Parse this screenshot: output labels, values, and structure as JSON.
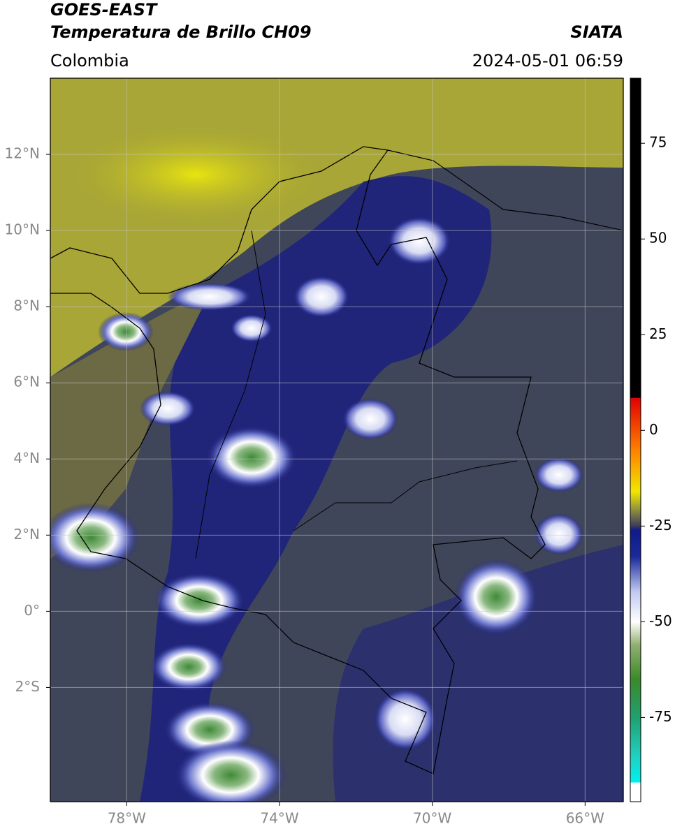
{
  "header": {
    "title": "GOES-EAST",
    "subtitle": "Temperatura de Brillo CH09",
    "source": "SIATA",
    "region": "Colombia",
    "datetime": "2024-05-01 06:59"
  },
  "map": {
    "xlim": [
      -80,
      -65
    ],
    "ylim": [
      -5,
      14
    ],
    "grid": true,
    "xticks": [
      {
        "value": -78,
        "label": "78°W"
      },
      {
        "value": -74,
        "label": "74°W"
      },
      {
        "value": -70,
        "label": "70°W"
      },
      {
        "value": -66,
        "label": "66°W"
      }
    ],
    "yticks": [
      {
        "value": 12,
        "label": "12°N"
      },
      {
        "value": 10,
        "label": "10°N"
      },
      {
        "value": 8,
        "label": "8°N"
      },
      {
        "value": 6,
        "label": "6°N"
      },
      {
        "value": 4,
        "label": "4°N"
      },
      {
        "value": 2,
        "label": "2°N"
      },
      {
        "value": 0,
        "label": "0°"
      },
      {
        "value": -2,
        "label": "2°S"
      }
    ]
  },
  "colorbar": {
    "lim": [
      -97,
      92
    ],
    "ticks": [
      75,
      50,
      25,
      0,
      -25,
      -50,
      -75
    ],
    "colormap": [
      {
        "value": 92,
        "color": "#000000"
      },
      {
        "value": 8.5,
        "color": "#000000"
      },
      {
        "value": 8.5,
        "color": "#e00000"
      },
      {
        "value": -5,
        "color": "#ff7f00"
      },
      {
        "value": -16,
        "color": "#f0e800"
      },
      {
        "value": -21,
        "color": "#8a8a40"
      },
      {
        "value": -25,
        "color": "#3a3a5a"
      },
      {
        "value": -26,
        "color": "#101a8a"
      },
      {
        "value": -33,
        "color": "#1a2a9a"
      },
      {
        "value": -42,
        "color": "#c0c8f0"
      },
      {
        "value": -50,
        "color": "#ffffff"
      },
      {
        "value": -56,
        "color": "#90b070"
      },
      {
        "value": -65,
        "color": "#3a8a2a"
      },
      {
        "value": -75,
        "color": "#20a070"
      },
      {
        "value": -85,
        "color": "#20d0c0"
      },
      {
        "value": -92,
        "color": "#00f0f0"
      },
      {
        "value": -92,
        "color": "#ffffff"
      },
      {
        "value": -97,
        "color": "#ffffff"
      }
    ]
  }
}
